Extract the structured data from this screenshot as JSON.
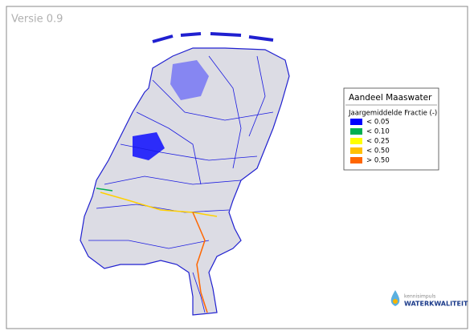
{
  "version": "Versie 0.9",
  "legend": {
    "title": "Aandeel Maaswater",
    "subtitle": "Jaargemiddelde Fractie (-)",
    "items": [
      {
        "label": "< 0.05",
        "color": "#0000ff"
      },
      {
        "label": "< 0.10",
        "color": "#00b050"
      },
      {
        "label": "< 0.25",
        "color": "#ffff00"
      },
      {
        "label": "< 0.50",
        "color": "#ffc000"
      },
      {
        "label": "> 0.50",
        "color": "#ff6600"
      }
    ]
  },
  "logo": {
    "line1": "kennisimpuls",
    "line2": "WATERKWALITEIT"
  }
}
